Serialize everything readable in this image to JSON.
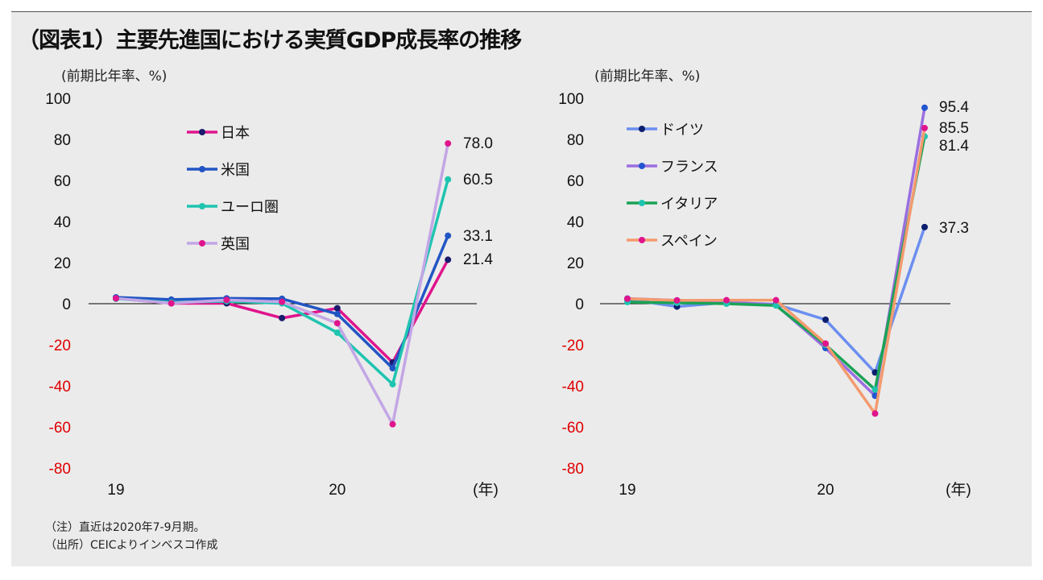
{
  "title": "（図表1）主要先進国における実質GDP成長率の推移",
  "notes": [
    "（注）直近は2020年7-9月期。",
    "（出所）CEICよりインベスコ作成"
  ],
  "chart_data": [
    {
      "type": "line",
      "ylabel": "(前期比年率、%)",
      "xlabel": "(年)",
      "ylim": [
        -80,
        100
      ],
      "yticks": [
        100,
        80,
        60,
        40,
        20,
        0,
        -20,
        -40,
        -60,
        -80
      ],
      "negative_tick_color": "#e00000",
      "x": [
        "2019Q1",
        "2019Q2",
        "2019Q3",
        "2019Q4",
        "2020Q1",
        "2020Q2",
        "2020Q3"
      ],
      "xtick_labels": [
        {
          "at": "2019Q1",
          "label": "19"
        },
        {
          "at": "2020Q1",
          "label": "20"
        }
      ],
      "legend": "top-left inside",
      "grid": false,
      "series": [
        {
          "name": "日本",
          "line_color": "#e0148c",
          "marker_color": "#1a1a6e",
          "values": [
            2.6,
            0.2,
            0.2,
            -7.0,
            -2.2,
            -28.6,
            21.4
          ],
          "end_label": "21.4"
        },
        {
          "name": "米国",
          "line_color": "#2255c4",
          "marker_color": "#2255c4",
          "values": [
            3.1,
            2.0,
            2.6,
            2.4,
            -5.0,
            -31.4,
            33.1
          ],
          "end_label": "33.1"
        },
        {
          "name": "ユーロ圏",
          "line_color": "#1fc4b0",
          "marker_color": "#1fc4b0",
          "values": [
            2.4,
            0.6,
            1.2,
            0.2,
            -14.1,
            -39.2,
            60.5
          ],
          "end_label": "60.5"
        },
        {
          "name": "英国",
          "line_color": "#c3a6e6",
          "marker_color": "#e0148c",
          "values": [
            2.6,
            0.2,
            1.8,
            0.9,
            -9.5,
            -58.7,
            78.0
          ],
          "end_label": "78.0"
        }
      ]
    },
    {
      "type": "line",
      "ylabel": "(前期比年率、%)",
      "xlabel": "(年)",
      "ylim": [
        -80,
        100
      ],
      "yticks": [
        100,
        80,
        60,
        40,
        20,
        0,
        -20,
        -40,
        -60,
        -80
      ],
      "negative_tick_color": "#e00000",
      "x": [
        "2019Q1",
        "2019Q2",
        "2019Q3",
        "2019Q4",
        "2020Q1",
        "2020Q2",
        "2020Q3"
      ],
      "xtick_labels": [
        {
          "at": "2019Q1",
          "label": "19"
        },
        {
          "at": "2020Q1",
          "label": "20"
        }
      ],
      "legend": "top-left inside",
      "grid": false,
      "series": [
        {
          "name": "ドイツ",
          "line_color": "#6b8ef0",
          "marker_color": "#0b1f6e",
          "values": [
            2.2,
            -1.4,
            0.6,
            -0.3,
            -7.8,
            -33.5,
            37.3
          ],
          "end_label": "37.3"
        },
        {
          "name": "フランス",
          "line_color": "#9b6ee0",
          "marker_color": "#2255d0",
          "values": [
            2.5,
            1.6,
            0.8,
            -0.6,
            -21.6,
            -44.8,
            95.4
          ],
          "end_label": "95.4"
        },
        {
          "name": "イタリア",
          "line_color": "#1aa355",
          "marker_color": "#1fc4b0",
          "values": [
            0.8,
            0.4,
            0.0,
            -0.9,
            -20.0,
            -41.8,
            81.4
          ],
          "end_label": "81.4"
        },
        {
          "name": "スペイン",
          "line_color": "#f49a6e",
          "marker_color": "#e0148c",
          "values": [
            2.4,
            1.6,
            1.7,
            1.7,
            -19.4,
            -53.5,
            85.5
          ],
          "end_label": "85.5"
        }
      ]
    }
  ]
}
